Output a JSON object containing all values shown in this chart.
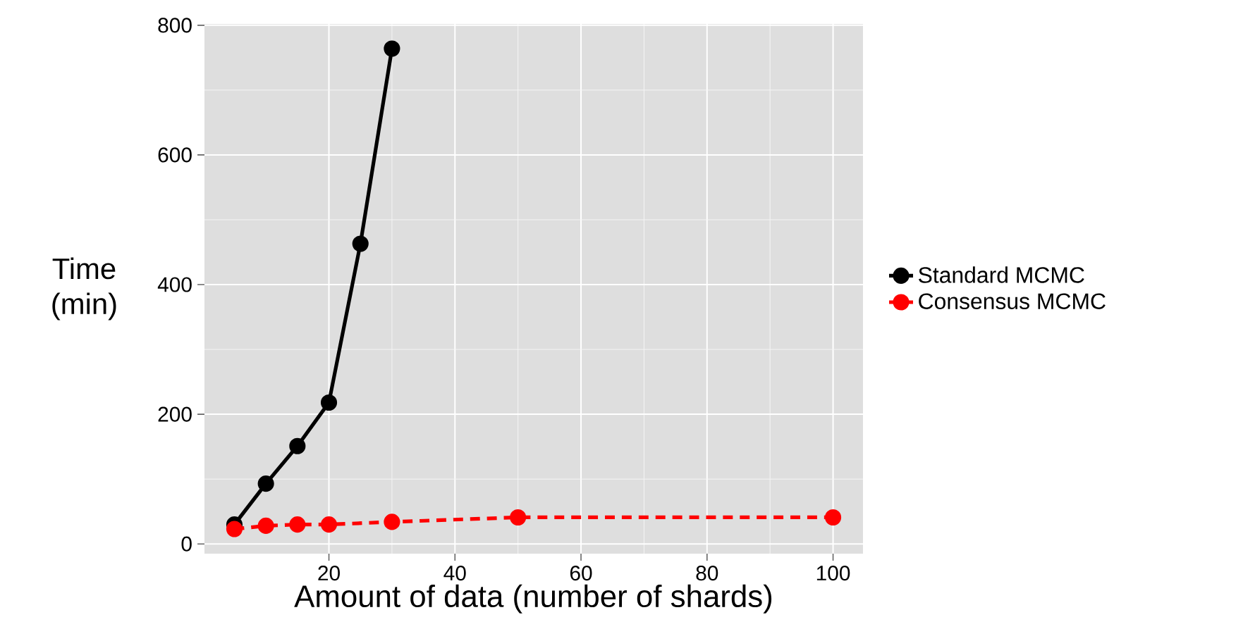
{
  "chart_data": {
    "type": "line",
    "xlabel": "Amount of data (number of shards)",
    "ylabel": "Time (min)",
    "xlim": [
      0.25,
      104.75
    ],
    "ylim": [
      -15,
      802
    ],
    "xticks": [
      20,
      40,
      60,
      80,
      100
    ],
    "yticks": [
      0,
      200,
      400,
      600,
      800
    ],
    "grid": true,
    "legend": "right",
    "marker": "circle",
    "series": [
      {
        "name": "Standard MCMC",
        "color": "#000000",
        "line_style": "solid",
        "x": [
          5,
          10,
          15,
          20,
          25,
          30
        ],
        "values": [
          30,
          93,
          151,
          218,
          463,
          764
        ]
      },
      {
        "name": "Consensus MCMC",
        "color": "#ff0000",
        "line_style": "dashed",
        "x": [
          5,
          10,
          15,
          20,
          30,
          50,
          100
        ],
        "values": [
          23,
          28,
          30,
          30,
          34,
          41,
          41
        ]
      }
    ]
  }
}
